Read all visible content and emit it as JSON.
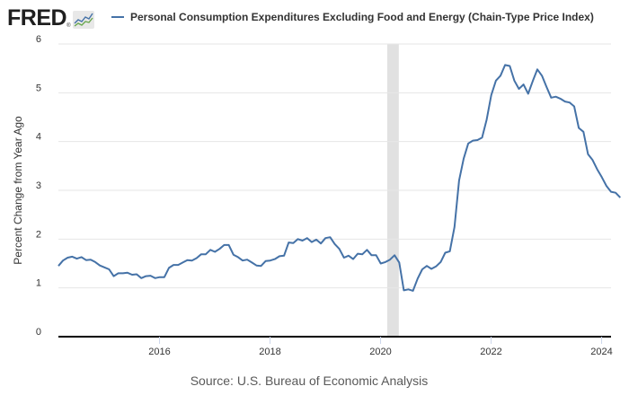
{
  "header": {
    "logo_text": "FRED",
    "logo_mark": "®",
    "logo_icon": "chart-line-icon",
    "legend_label": "Personal Consumption Expenditures Excluding Food and Energy (Chain-Type Price Index)"
  },
  "source": "Source: U.S. Bureau of Economic Analysis",
  "colors": {
    "series": "#4572a7",
    "grid": "#e6e6e6",
    "recession": "#e1e1e1",
    "axis": "#000000",
    "text": "#333333"
  },
  "chart_data": {
    "type": "line",
    "title": "Personal Consumption Expenditures Excluding Food and Energy (Chain-Type Price Index)",
    "xlabel": "",
    "ylabel": "Percent Change from Year Ago",
    "ylim": [
      0,
      6
    ],
    "yticks": [
      "0",
      "1",
      "2",
      "3",
      "4",
      "5",
      "6"
    ],
    "xlim": [
      2014.17,
      2024.17
    ],
    "xticks": [
      "2016",
      "2018",
      "2020",
      "2022",
      "2024"
    ],
    "grid": true,
    "legend_position": "top-left",
    "recessions": [
      {
        "start": 2020.12,
        "end": 2020.33
      }
    ],
    "frequency": "monthly",
    "start": "2014-03",
    "series": [
      {
        "name": "Personal Consumption Expenditures Excluding Food and Energy (Chain-Type Price Index)",
        "values": [
          1.45,
          1.56,
          1.62,
          1.64,
          1.6,
          1.63,
          1.57,
          1.58,
          1.53,
          1.46,
          1.42,
          1.38,
          1.24,
          1.3,
          1.3,
          1.31,
          1.27,
          1.28,
          1.2,
          1.24,
          1.25,
          1.2,
          1.22,
          1.22,
          1.41,
          1.47,
          1.47,
          1.52,
          1.57,
          1.56,
          1.61,
          1.69,
          1.69,
          1.78,
          1.74,
          1.8,
          1.88,
          1.88,
          1.68,
          1.63,
          1.56,
          1.58,
          1.52,
          1.46,
          1.45,
          1.55,
          1.56,
          1.59,
          1.65,
          1.66,
          1.93,
          1.92,
          2.0,
          1.97,
          2.02,
          1.94,
          1.99,
          1.91,
          2.02,
          2.04,
          1.9,
          1.8,
          1.62,
          1.66,
          1.59,
          1.7,
          1.69,
          1.78,
          1.67,
          1.67,
          1.5,
          1.53,
          1.58,
          1.67,
          1.52,
          0.95,
          0.97,
          0.94,
          1.19,
          1.38,
          1.45,
          1.39,
          1.44,
          1.53,
          1.72,
          1.75,
          2.25,
          3.2,
          3.65,
          3.96,
          4.02,
          4.03,
          4.08,
          4.45,
          4.95,
          5.25,
          5.35,
          5.57,
          5.55,
          5.25,
          5.08,
          5.17,
          4.98,
          5.24,
          5.48,
          5.35,
          5.12,
          4.9,
          4.92,
          4.88,
          4.82,
          4.8,
          4.72,
          4.28,
          4.2,
          3.74,
          3.62,
          3.43,
          3.27,
          3.09,
          2.97,
          2.95,
          2.85
        ]
      }
    ]
  }
}
